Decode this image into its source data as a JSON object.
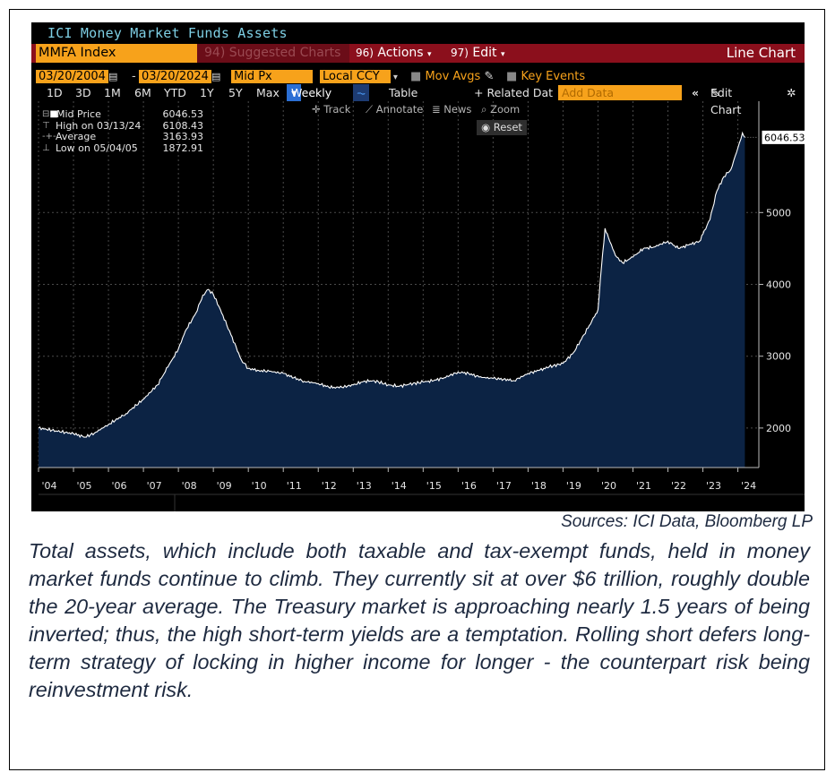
{
  "terminal": {
    "title": "ICI Money Market Funds Assets",
    "ticker": "MMFA Index",
    "suggested": "94) Suggested Charts",
    "actions": "Actions",
    "actions_num": "96)",
    "edit": "Edit",
    "edit_num": "97)",
    "chart_type": "Line Chart",
    "start_date": "03/20/2004",
    "end_date": "03/20/2024",
    "price_field": "Mid Px",
    "currency": "Local CCY",
    "mov_avgs": "Mov Avgs",
    "key_events": "Key Events",
    "periods": [
      "1D",
      "3D",
      "1M",
      "6M",
      "YTD",
      "1Y",
      "5Y",
      "Max"
    ],
    "frequency": "Weekly",
    "table_label": "Table",
    "related": "+ Related Dat",
    "add_data_placeholder": "Add Data",
    "edit_chart": "Edit Chart",
    "tools": {
      "track": "Track",
      "annotate": "Annotate",
      "news": "News",
      "zoom": "Zoom",
      "reset": "Reset"
    },
    "legend": [
      {
        "label": "Mid Price",
        "value": "6046.53"
      },
      {
        "label": "High on 03/13/24",
        "value": "6108.43"
      },
      {
        "label": "Average",
        "value": "3163.93"
      },
      {
        "label": "Low on 05/04/05",
        "value": "1872.91"
      }
    ],
    "last_value_label": "6046.53"
  },
  "colors": {
    "background": "#000000",
    "area_fill": "#0c2344",
    "line": "#ffffff",
    "ticker_bg": "#f7a21b",
    "bar_red": "#8b0f1c",
    "caption_text": "#1e2a40"
  },
  "chart_data": {
    "type": "area",
    "x_tick_labels": [
      "'04",
      "'05",
      "'06",
      "'07",
      "'08",
      "'09",
      "'10",
      "'11",
      "'12",
      "'13",
      "'14",
      "'15",
      "'16",
      "'17",
      "'18",
      "'19",
      "'20",
      "'21",
      "'22",
      "'23",
      "'24"
    ],
    "y_tick_labels": [
      "2000",
      "3000",
      "4000",
      "5000"
    ],
    "ylim": [
      1450,
      6550
    ],
    "xlim": [
      2004.0,
      2024.6
    ],
    "grid": true,
    "series": [
      {
        "x": [
          2004.0,
          2004.5,
          2005.0,
          2005.33,
          2005.6,
          2006.0,
          2006.5,
          2007.0,
          2007.4,
          2007.7,
          2008.0,
          2008.2,
          2008.5,
          2008.7,
          2008.85,
          2009.0,
          2009.2,
          2009.5,
          2009.8,
          2010.0,
          2010.3,
          2010.6,
          2011.0,
          2011.3,
          2011.6,
          2012.0,
          2012.3,
          2012.6,
          2013.0,
          2013.3,
          2013.6,
          2014.0,
          2014.3,
          2014.6,
          2015.0,
          2015.3,
          2015.6,
          2016.0,
          2016.3,
          2016.6,
          2017.0,
          2017.3,
          2017.6,
          2018.0,
          2018.3,
          2018.6,
          2019.0,
          2019.3,
          2019.6,
          2019.9,
          2020.0,
          2020.1,
          2020.2,
          2020.3,
          2020.5,
          2020.7,
          2021.0,
          2021.3,
          2021.6,
          2022.0,
          2022.3,
          2022.6,
          2022.9,
          2023.0,
          2023.2,
          2023.4,
          2023.6,
          2023.8,
          2024.0,
          2024.13,
          2024.2
        ],
        "y": [
          2000,
          1960,
          1920,
          1873,
          1930,
          2050,
          2200,
          2400,
          2600,
          2850,
          3100,
          3350,
          3600,
          3850,
          3930,
          3860,
          3650,
          3300,
          2950,
          2830,
          2800,
          2790,
          2760,
          2700,
          2650,
          2620,
          2570,
          2560,
          2600,
          2650,
          2660,
          2600,
          2580,
          2610,
          2640,
          2660,
          2700,
          2780,
          2760,
          2710,
          2690,
          2680,
          2660,
          2760,
          2800,
          2850,
          2900,
          3050,
          3300,
          3550,
          3650,
          4250,
          4780,
          4650,
          4400,
          4300,
          4380,
          4500,
          4520,
          4600,
          4500,
          4550,
          4600,
          4700,
          4900,
          5300,
          5500,
          5600,
          5900,
          6108,
          6046.53
        ]
      }
    ]
  },
  "source": "Sources: ICI Data, Bloomberg LP",
  "caption": "Total assets, which include both taxable and tax-exempt funds, held in money market funds continue to climb. They currently sit at over $6 trillion, roughly double the 20-year average. The Treasury market is approaching nearly 1.5 years of being inverted; thus, the high short-term yields are a temptation. Rolling short defers long-term strategy of locking in higher income for longer - the counterpart risk being reinvestment risk."
}
